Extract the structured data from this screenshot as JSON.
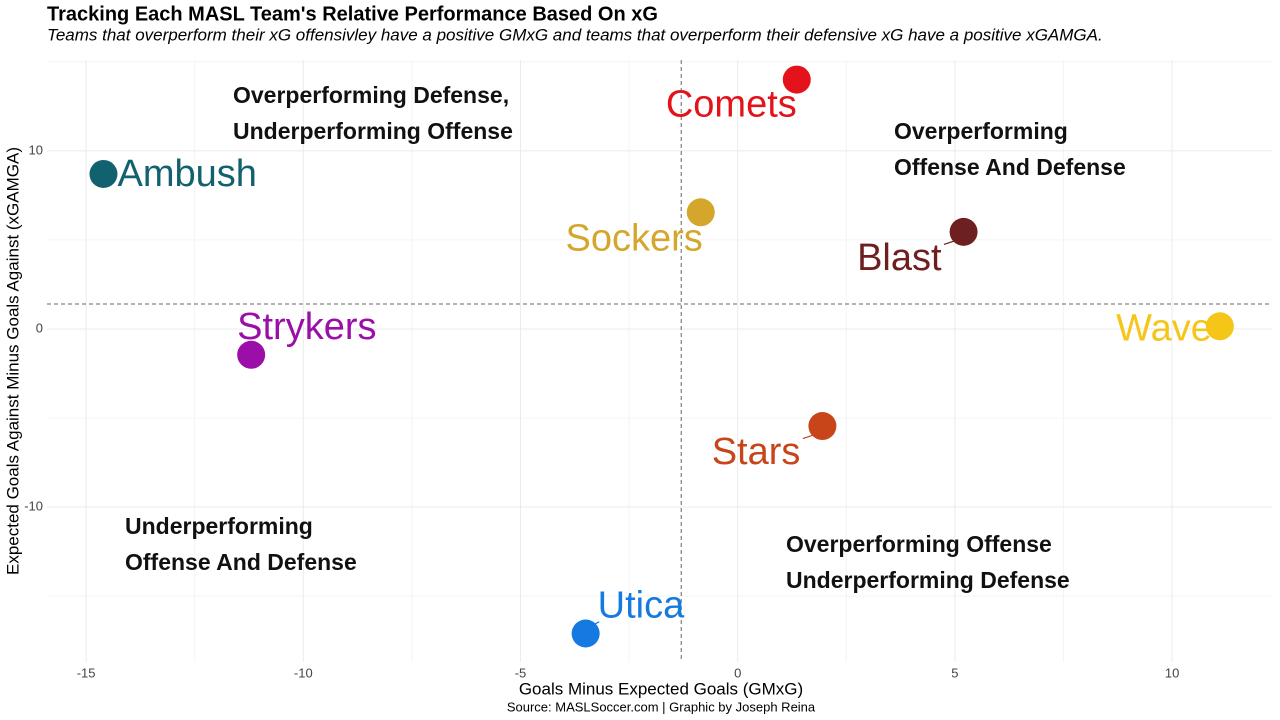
{
  "chart_data": {
    "type": "scatter",
    "title": "Tracking Each MASL Team's Relative Performance Based On xG",
    "subtitle": "Teams that overperform their xG offensivley have a positive GMxG and teams that overperform their defensive xG have a positive xGAMGA.",
    "x_label": "Goals Minus Expected Goals (GMxG)",
    "y_label": "Expected Goals Against Minus Goals Against (xGAMGA)",
    "caption": "Source: MASLSoccer.com | Graphic by Joseph Reina",
    "xlim": [
      -15.9,
      12.3
    ],
    "ylim": [
      -18.7,
      15.1
    ],
    "xticks": [
      -15,
      -10,
      -5,
      0,
      5,
      10
    ],
    "yticks": [
      -10,
      0,
      10
    ],
    "grid": true,
    "reference_lines": {
      "x": -1.3,
      "y": 1.4
    },
    "points": [
      {
        "name": "Comets",
        "color": "#e3121b",
        "x": 1.36,
        "y": 14.0
      },
      {
        "name": "Ambush",
        "color": "#12616e",
        "x": -14.6,
        "y": 8.7
      },
      {
        "name": "Sockers",
        "color": "#d4a72c",
        "x": -0.85,
        "y": 6.55
      },
      {
        "name": "Blast",
        "color": "#6e1f1f",
        "x": 5.2,
        "y": 5.45
      },
      {
        "name": "Strykers",
        "color": "#9b0fa8",
        "x": -11.2,
        "y": -1.45
      },
      {
        "name": "Wave",
        "color": "#f5c518",
        "x": 11.1,
        "y": 0.15
      },
      {
        "name": "Stars",
        "color": "#c8451a",
        "x": 1.95,
        "y": -5.45
      },
      {
        "name": "Utica",
        "color": "#1479e0",
        "x": -3.5,
        "y": -17.1
      }
    ],
    "annotations": [
      {
        "lines": [
          "Overperforming Defense,",
          "Underperforming Offense"
        ]
      },
      {
        "lines": [
          "Overperforming",
          "Offense And Defense"
        ]
      },
      {
        "lines": [
          "Underperforming",
          "Offense And Defense"
        ]
      },
      {
        "lines": [
          "Overperforming Offense",
          "Underperforming Defense"
        ]
      }
    ]
  }
}
